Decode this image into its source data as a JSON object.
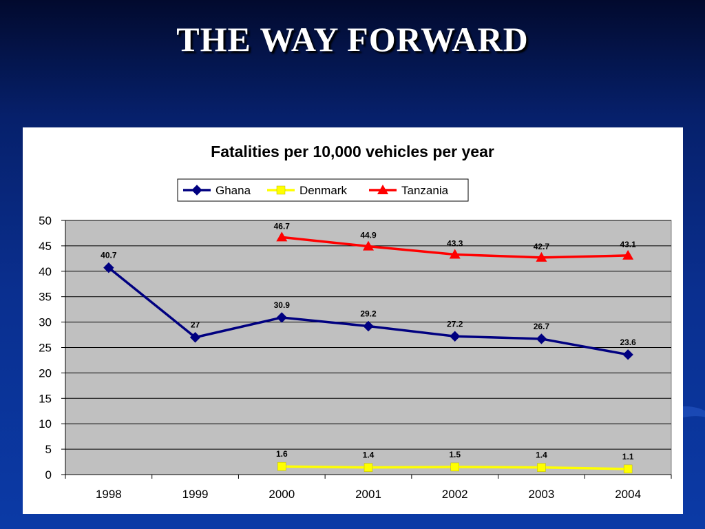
{
  "slide": {
    "title": "THE WAY FORWARD"
  },
  "chart_data": {
    "type": "line",
    "title": "Fatalities per 10,000 vehicles per year",
    "xlabel": "",
    "ylabel": "",
    "categories": [
      "1998",
      "1999",
      "2000",
      "2001",
      "2002",
      "2003",
      "2004"
    ],
    "ylim": [
      0,
      50
    ],
    "yticks": [
      0,
      5,
      10,
      15,
      20,
      25,
      30,
      35,
      40,
      45,
      50
    ],
    "grid": true,
    "legend": "top",
    "plot_background": "#c0c0c0",
    "series": [
      {
        "name": "Ghana",
        "color": "#000080",
        "marker": "diamond",
        "values": [
          40.7,
          27,
          30.9,
          29.2,
          27.2,
          26.7,
          23.6
        ],
        "labels": [
          "40.7",
          "27",
          "30.9",
          "29.2",
          "27.2",
          "26.7",
          "23.6"
        ]
      },
      {
        "name": "Denmark",
        "color": "#ffff00",
        "marker": "square",
        "values": [
          null,
          null,
          1.6,
          1.4,
          1.5,
          1.4,
          1.1
        ],
        "labels": [
          "",
          "",
          "1.6",
          "1.4",
          "1.5",
          "1.4",
          "1.1"
        ]
      },
      {
        "name": "Tanzania",
        "color": "#ff0000",
        "marker": "triangle",
        "values": [
          null,
          null,
          46.7,
          44.9,
          43.3,
          42.7,
          43.1
        ],
        "labels": [
          "",
          "",
          "46.7",
          "44.9",
          "43.3",
          "42.7",
          "43.1"
        ]
      }
    ]
  }
}
